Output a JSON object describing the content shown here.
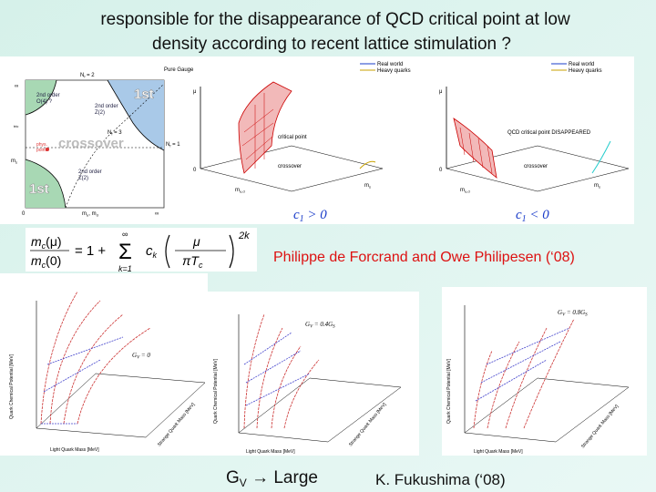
{
  "slide": {
    "title_lines": [
      "responsible for the disappearance of QCD critical point   at low",
      "density according  to  recent lattice stimulation ?"
    ],
    "phase_diagram": {
      "nf2": "N",
      "nf2_sub": "f",
      "nf2_rest": " = 2",
      "pure_gauge": "Pure Gauge",
      "first_top": "1st",
      "first_bottom": "1st",
      "crossover": "crossover",
      "o4": "2nd order",
      "o4b": "O(4) ?",
      "z2_top": "2nd order",
      "z2_topb": "Z(2)",
      "z2_bottom": "2nd order",
      "z2_bottomb": "Z(2)",
      "nf3": "N",
      "nf3_rest": " = 3",
      "nf1": "N",
      "nf1_rest": " = 1",
      "phys": "phys.",
      "physb": "point",
      "ms": "m",
      "ms_sub": "s",
      "mud": "m",
      "mud_sub": "u",
      "mud_rest": ", m",
      "mud_sub2": "d",
      "inf_top": "∞",
      "inf_right": "∞",
      "zero": "0",
      "tric": "tric"
    },
    "plot_left": {
      "legend_real": "Real world",
      "legend_heavy": "Heavy quarks",
      "mu": "μ",
      "critical": "critical point",
      "crossover": "crossover",
      "c1": "c",
      "c1_sub": "1",
      "c1_rest": " > 0",
      "zero": "0",
      "ms": "m",
      "ms_sub": "s",
      "mud": "m",
      "mud_sub": "u,d"
    },
    "plot_right": {
      "legend_real": "Real world",
      "legend_heavy": "Heavy quarks",
      "mu": "μ",
      "critical": "QCD critical point DISAPPEARED",
      "crossover": "crossover",
      "c1": "c",
      "c1_sub": "1",
      "c1_rest": " < 0",
      "zero": "0",
      "ms": "m",
      "ms_sub": "s",
      "mud": "m",
      "mud_sub": "u,d"
    },
    "formula": {
      "lhs_num": "m",
      "lhs_num_sub": "c",
      "lhs_num_arg": "(μ)",
      "lhs_den": "m",
      "lhs_den_sub": "c",
      "lhs_den_arg": "(0)",
      "eq": "= 1 +",
      "sigma": "Σ",
      "sum_top": "∞",
      "sum_bottom": "k=1",
      "ck": "c",
      "ck_sub": "k",
      "frac_num": "μ",
      "frac_den": "πT",
      "frac_den_sub": "c",
      "power": "2k"
    },
    "citation": "Philippe de Forcrand and Owe Philipesen (‘08)",
    "lower_plots": [
      {
        "gv": "G",
        "gv_sub": "V",
        "gv_rest": " = 0",
        "yaxis": "Quark Chemical Potential [MeV]",
        "xaxis": "Light Quark Mass [MeV]",
        "zaxis": "Strange Quark Mass [MeV]"
      },
      {
        "gv": "G",
        "gv_sub": "V",
        "gv_rest": " = 0.4G",
        "gv_sub2": "S",
        "yaxis": "Quark Chemical Potential [MeV]",
        "xaxis": "Light Quark Mass [MeV]",
        "zaxis": "Strange Quark Mass [MeV]"
      },
      {
        "gv": "G",
        "gv_sub": "V",
        "gv_rest": " = 0.8G",
        "gv_sub2": "S",
        "yaxis": "Quark Chemical Potential [MeV]",
        "xaxis": "Light Quark Mass [MeV]",
        "zaxis": "Strange Quark Mass [MeV]"
      }
    ],
    "caption_gv": {
      "main": "G",
      "sub": "V",
      "rest": " → Large"
    },
    "fukushima": "K. Fukushima (‘08)"
  }
}
